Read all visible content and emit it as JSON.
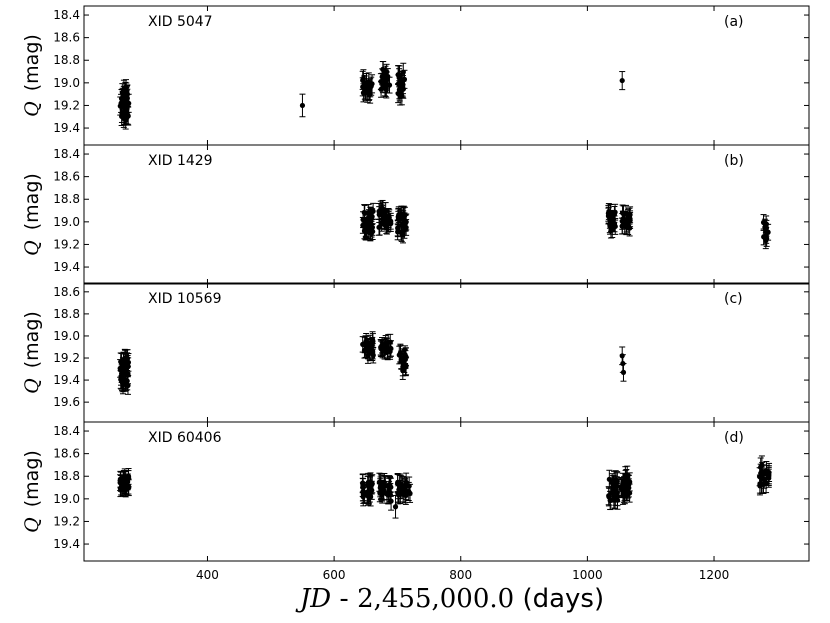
{
  "figure": {
    "xlabel_parts": {
      "jd": "JD",
      "dash": " - ",
      "offset": "2,455,000.0",
      "unit": " (days)"
    },
    "ylabel_symbol": "Q",
    "ylabel_unit": "(mag)",
    "xticks": [
      400,
      600,
      800,
      1000,
      1200
    ],
    "xlim": [
      205,
      1350
    ]
  },
  "chart_data": [
    {
      "type": "scatter",
      "panel_tag": "(a)",
      "source_label": "XID 5047",
      "ylim": [
        19.55,
        18.32
      ],
      "yticks": [
        18.4,
        18.6,
        18.8,
        19.0,
        19.2,
        19.4
      ],
      "y_inverted": true,
      "clusters": [
        {
          "x": [
            262,
            276
          ],
          "y": [
            19.05,
            19.33
          ],
          "n": 40,
          "err": 0.08
        },
        {
          "x": [
            645,
            660
          ],
          "y": [
            18.92,
            19.1
          ],
          "n": 20,
          "err": 0.08
        },
        {
          "x": [
            672,
            688
          ],
          "y": [
            18.88,
            19.08
          ],
          "n": 20,
          "err": 0.07
        },
        {
          "x": [
            700,
            712
          ],
          "y": [
            18.9,
            19.12
          ],
          "n": 22,
          "err": 0.08
        }
      ],
      "points": [
        {
          "x": 550,
          "y": 19.2,
          "err": 0.1
        },
        {
          "x": 1055,
          "y": 18.98,
          "err": 0.08
        }
      ]
    },
    {
      "type": "scatter",
      "panel_tag": "(b)",
      "source_label": "XID 1429",
      "ylim": [
        19.55,
        18.32
      ],
      "yticks": [
        18.4,
        18.6,
        18.8,
        19.0,
        19.2,
        19.4
      ],
      "y_inverted": true,
      "clusters": [
        {
          "x": [
            645,
            662
          ],
          "y": [
            18.9,
            19.1
          ],
          "n": 30,
          "err": 0.07
        },
        {
          "x": [
            670,
            690
          ],
          "y": [
            18.88,
            19.05
          ],
          "n": 30,
          "err": 0.07
        },
        {
          "x": [
            700,
            714
          ],
          "y": [
            18.92,
            19.12
          ],
          "n": 26,
          "err": 0.07
        },
        {
          "x": [
            1033,
            1045
          ],
          "y": [
            18.9,
            19.08
          ],
          "n": 20,
          "err": 0.07
        },
        {
          "x": [
            1053,
            1068
          ],
          "y": [
            18.92,
            19.06
          ],
          "n": 24,
          "err": 0.07
        },
        {
          "x": [
            1272,
            1286
          ],
          "y": [
            19.0,
            19.18
          ],
          "n": 10,
          "err": 0.07
        }
      ],
      "points": []
    },
    {
      "type": "scatter",
      "panel_tag": "(c)",
      "source_label": "XID 10569",
      "ylim": [
        19.78,
        18.52
      ],
      "yticks": [
        18.6,
        18.8,
        19.0,
        19.2,
        19.4,
        19.6
      ],
      "y_inverted": true,
      "clusters": [
        {
          "x": [
            262,
            276
          ],
          "y": [
            19.2,
            19.45
          ],
          "n": 38,
          "err": 0.08
        },
        {
          "x": [
            645,
            662
          ],
          "y": [
            19.03,
            19.18
          ],
          "n": 22,
          "err": 0.07
        },
        {
          "x": [
            672,
            690
          ],
          "y": [
            19.05,
            19.15
          ],
          "n": 22,
          "err": 0.07
        },
        {
          "x": [
            702,
            714
          ],
          "y": [
            19.15,
            19.32
          ],
          "n": 20,
          "err": 0.08
        }
      ],
      "points": [
        {
          "x": 1055,
          "y": 19.18,
          "err": 0.08
        },
        {
          "x": 1056,
          "y": 19.25,
          "err": 0.08
        },
        {
          "x": 1057,
          "y": 19.33,
          "err": 0.08
        }
      ]
    },
    {
      "type": "scatter",
      "panel_tag": "(d)",
      "source_label": "XID 60406",
      "ylim": [
        19.55,
        18.32
      ],
      "yticks": [
        18.4,
        18.6,
        18.8,
        19.0,
        19.2,
        19.4
      ],
      "y_inverted": true,
      "clusters": [
        {
          "x": [
            262,
            277
          ],
          "y": [
            18.8,
            18.92
          ],
          "n": 28,
          "err": 0.07
        },
        {
          "x": [
            645,
            662
          ],
          "y": [
            18.85,
            19.0
          ],
          "n": 26,
          "err": 0.08
        },
        {
          "x": [
            670,
            690
          ],
          "y": [
            18.85,
            18.97
          ],
          "n": 28,
          "err": 0.08
        },
        {
          "x": [
            700,
            720
          ],
          "y": [
            18.85,
            18.98
          ],
          "n": 24,
          "err": 0.08
        },
        {
          "x": [
            1033,
            1048
          ],
          "y": [
            18.82,
            19.02
          ],
          "n": 26,
          "err": 0.08
        },
        {
          "x": [
            1053,
            1068
          ],
          "y": [
            18.78,
            18.98
          ],
          "n": 30,
          "err": 0.08
        },
        {
          "x": [
            1272,
            1288
          ],
          "y": [
            18.7,
            18.9
          ],
          "n": 20,
          "err": 0.08
        }
      ],
      "points": [
        {
          "x": 690,
          "y": 19.02,
          "err": 0.08
        },
        {
          "x": 697,
          "y": 19.07,
          "err": 0.1
        }
      ]
    }
  ]
}
